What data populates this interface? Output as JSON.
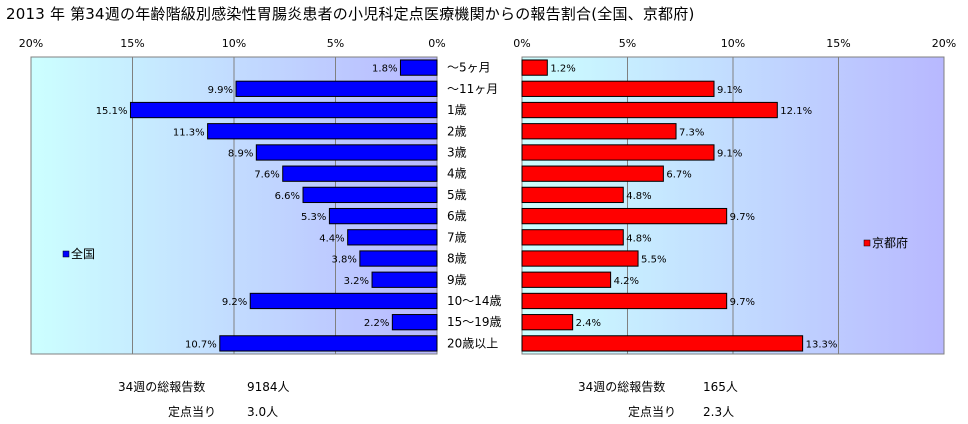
{
  "title": "2013 年 第34週の年齢階級別感染性胃腸炎患者の小児科定点医療機関からの報告割合(全国、京都府)",
  "chart_data": {
    "type": "bar",
    "categories": [
      "～5ヶ月",
      "～11ヶ月",
      "1歳",
      "2歳",
      "3歳",
      "4歳",
      "5歳",
      "6歳",
      "7歳",
      "8歳",
      "9歳",
      "10～14歳",
      "15～19歳",
      "20歳以上"
    ],
    "series": [
      {
        "name": "全国",
        "color": "#0000ff",
        "values": [
          1.8,
          9.9,
          15.1,
          11.3,
          8.9,
          7.6,
          6.6,
          5.3,
          4.4,
          3.8,
          3.2,
          9.2,
          2.2,
          10.7
        ],
        "labels": [
          "1.8%",
          "9.9%",
          "15.1%",
          "11.3%",
          "8.9%",
          "7.6%",
          "6.6%",
          "5.3%",
          "4.4%",
          "3.8%",
          "3.2%",
          "9.2%",
          "2.2%",
          "10.7%"
        ]
      },
      {
        "name": "京都府",
        "color": "#ff0000",
        "values": [
          1.2,
          9.1,
          12.1,
          7.3,
          9.1,
          6.7,
          4.8,
          9.7,
          4.8,
          5.5,
          4.2,
          9.7,
          2.4,
          13.3
        ],
        "labels": [
          "1.2%",
          "9.1%",
          "12.1%",
          "7.3%",
          "9.1%",
          "6.7%",
          "4.8%",
          "9.7%",
          "4.8%",
          "5.5%",
          "4.2%",
          "9.7%",
          "2.4%",
          "13.3%"
        ]
      }
    ],
    "xlim": [
      0,
      20
    ],
    "xticks_left": [
      "20%",
      "15%",
      "10%",
      "5%",
      "0%"
    ],
    "xticks_right": [
      "0%",
      "5%",
      "10%",
      "15%",
      "20%"
    ],
    "grid": true,
    "plot_bg": "#ccffff",
    "legend_left": "left",
    "legend_right": "right"
  },
  "footer": {
    "left_total_label": "34週の総報告数",
    "left_total_value": "9184人",
    "left_per_label": "定点当り",
    "left_per_value": "3.0人",
    "right_total_label": "34週の総報告数",
    "right_total_value": "165人",
    "right_per_label": "定点当り",
    "right_per_value": "2.3人"
  }
}
